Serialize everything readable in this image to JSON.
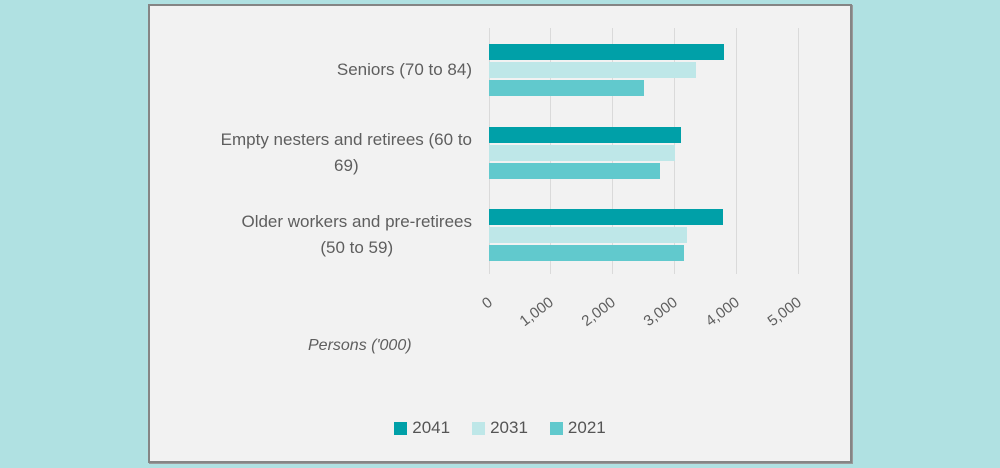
{
  "chart": {
    "outer_bg": "#B0E1E2",
    "panel_bg": "#F2F2F2",
    "panel_border": "#858585",
    "gridline_color": "#DADADA",
    "text_color": "#5E5E5E"
  },
  "chart_data": {
    "type": "bar",
    "orientation": "horizontal",
    "title": "",
    "xlabel": "Persons ('000)",
    "ylabel": "",
    "xlim": [
      0,
      5000
    ],
    "xticks": [
      0,
      1000,
      2000,
      3000,
      4000,
      5000
    ],
    "xtick_labels": [
      "0",
      "1,000",
      "2,000",
      "3,000",
      "4,000",
      "5,000"
    ],
    "grid": true,
    "legend_position": "bottom",
    "categories": [
      "Seniors (70 to 84)",
      "Empty nesters and retirees (60 to 69)",
      "Older workers and pre-retirees (50 to 59)"
    ],
    "category_display_lines": [
      [
        "Seniors (70 to 84)"
      ],
      [
        "Empty nesters and retirees (60 to",
        "69)"
      ],
      [
        "Older workers and pre-retirees",
        "(50 to 59)"
      ]
    ],
    "series": [
      {
        "name": "2041",
        "color": "#00A0A8",
        "values": [
          3800,
          3100,
          3780
        ]
      },
      {
        "name": "2031",
        "color": "#BEE7E8",
        "values": [
          3350,
          3010,
          3210
        ]
      },
      {
        "name": "2021",
        "color": "#61C9CD",
        "values": [
          2500,
          2760,
          3150
        ]
      }
    ]
  }
}
